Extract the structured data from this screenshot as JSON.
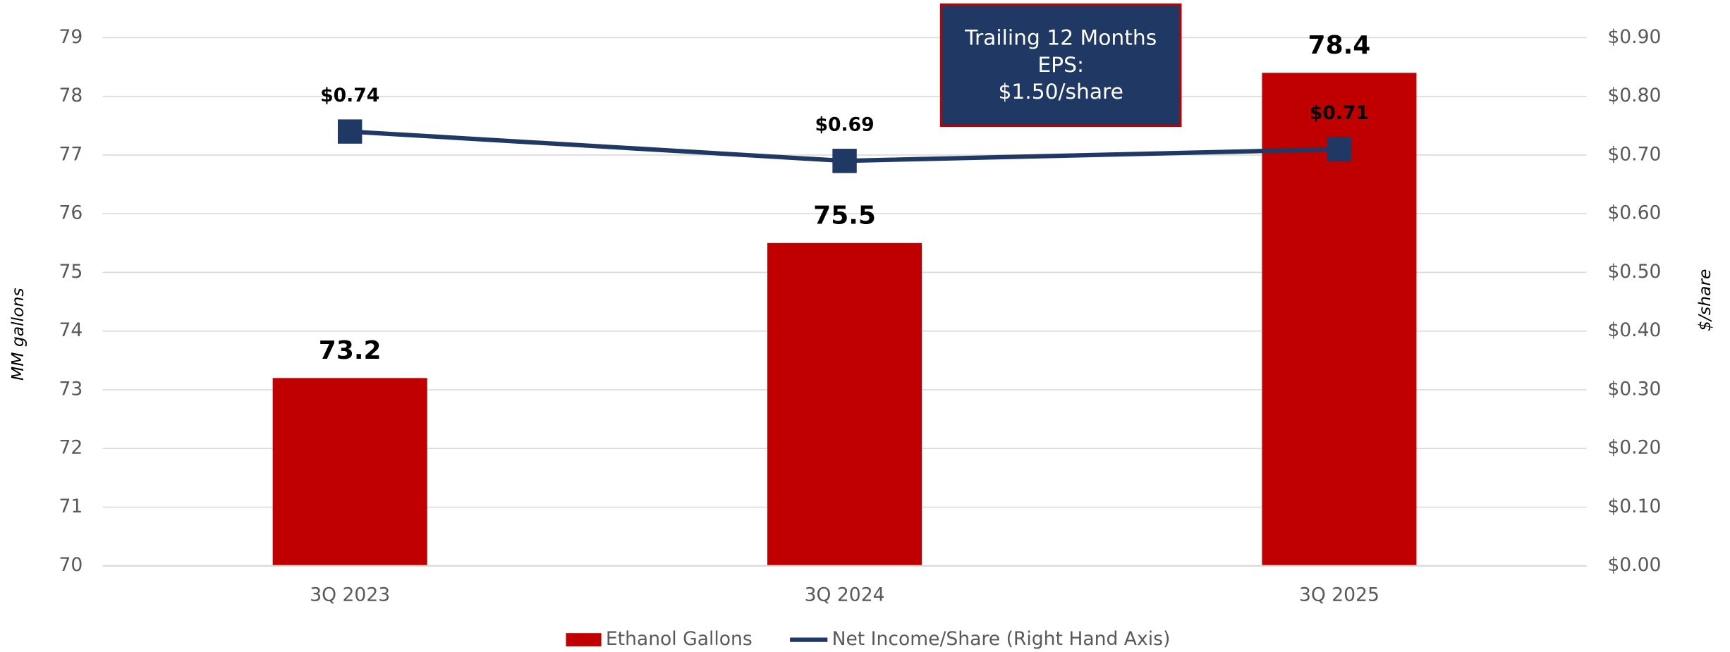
{
  "chart_data": {
    "type": "bar_line",
    "categories": [
      "3Q 2023",
      "3Q 2024",
      "3Q 2025"
    ],
    "series": [
      {
        "name": "Ethanol Gallons",
        "color": "#c00000",
        "type": "bar",
        "values": [
          73.2,
          75.5,
          78.4
        ]
      },
      {
        "name": "Net Income/Share (Right Hand Axis)",
        "color": "#1f3864",
        "type": "line",
        "axis": "y2",
        "values": [
          0.74,
          0.69,
          0.71
        ],
        "value_labels": [
          "$0.74",
          "$0.69",
          "$0.71"
        ]
      }
    ],
    "ylabel": "MM gallons",
    "y2label": "$/share",
    "ylim": [
      70,
      79
    ],
    "yticks": [
      70,
      71,
      72,
      73,
      74,
      75,
      76,
      77,
      78,
      79
    ],
    "y2lim": [
      0,
      0.9
    ],
    "y2ticks": [
      {
        "value": 0,
        "label": "$0.00"
      },
      {
        "value": 0.1,
        "label": "$0.10"
      },
      {
        "value": 0.2,
        "label": "$0.20"
      },
      {
        "value": 0.3,
        "label": "$0.30"
      },
      {
        "value": 0.4,
        "label": "$0.40"
      },
      {
        "value": 0.5,
        "label": "$0.50"
      },
      {
        "value": 0.6,
        "label": "$0.60"
      },
      {
        "value": 0.7,
        "label": "$0.70"
      },
      {
        "value": 0.8,
        "label": "$0.80"
      },
      {
        "value": 0.9,
        "label": "$0.90"
      }
    ],
    "annotation": [
      "Trailing 12 Months",
      "EPS:",
      "$1.50/share"
    ],
    "grid": true,
    "legend": "bottom"
  }
}
